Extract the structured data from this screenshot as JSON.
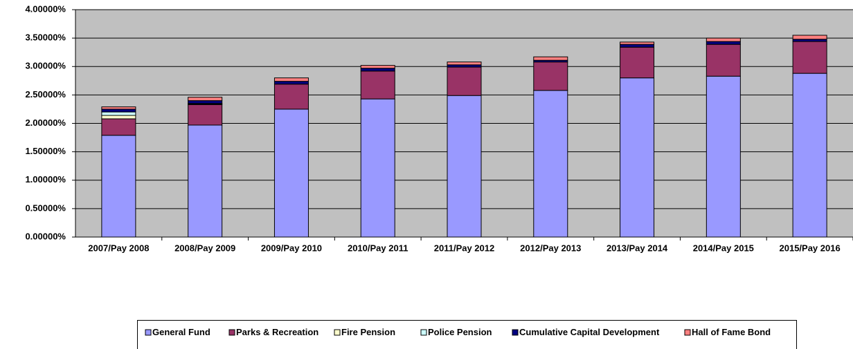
{
  "chart_data": {
    "type": "stacked_bar",
    "categories": [
      "2007/Pay 2008",
      "2008/Pay 2009",
      "2009/Pay 2010",
      "2010/Pay 2011",
      "2011/Pay 2012",
      "2012/Pay 2013",
      "2013/Pay 2014",
      "2014/Pay 2015",
      "2015/Pay 2016"
    ],
    "series": [
      {
        "name": "General Fund",
        "color": "#9999ff",
        "values": [
          1.79,
          1.97,
          2.25,
          2.43,
          2.49,
          2.58,
          2.8,
          2.83,
          2.88
        ]
      },
      {
        "name": "Parks & Recreation",
        "color": "#993366",
        "values": [
          0.29,
          0.36,
          0.44,
          0.49,
          0.5,
          0.5,
          0.54,
          0.56,
          0.56
        ]
      },
      {
        "name": "Fire Pension",
        "color": "#ffffcc",
        "values": [
          0.06,
          0.01,
          0,
          0,
          0,
          0,
          0,
          0,
          0
        ]
      },
      {
        "name": "Police Pension",
        "color": "#ccffff",
        "values": [
          0.06,
          0.01,
          0,
          0,
          0,
          0,
          0,
          0,
          0
        ]
      },
      {
        "name": "Cumulative Capital Development",
        "color": "#000080",
        "values": [
          0.05,
          0.05,
          0.05,
          0.05,
          0.04,
          0.03,
          0.05,
          0.05,
          0.04
        ]
      },
      {
        "name": "Hall of Fame Bond",
        "color": "#ff8080",
        "values": [
          0.04,
          0.06,
          0.06,
          0.05,
          0.05,
          0.06,
          0.04,
          0.06,
          0.07
        ]
      }
    ],
    "ylim": [
      0,
      4
    ],
    "yticks": [
      {
        "value": 0,
        "label": "0.00000%"
      },
      {
        "value": 0.5,
        "label": "0.50000%"
      },
      {
        "value": 1,
        "label": "1.00000%"
      },
      {
        "value": 1.5,
        "label": "1.50000%"
      },
      {
        "value": 2,
        "label": "2.00000%"
      },
      {
        "value": 2.5,
        "label": "2.50000%"
      },
      {
        "value": 3,
        "label": "3.00000%"
      },
      {
        "value": 3.5,
        "label": "3.50000%"
      },
      {
        "value": 4,
        "label": "4.00000%"
      }
    ],
    "grid": true,
    "legend": "bottom"
  }
}
